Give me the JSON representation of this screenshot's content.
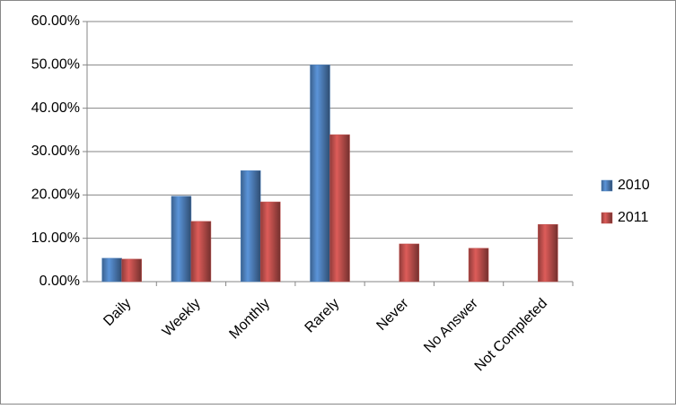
{
  "chart_data": {
    "type": "bar",
    "categories": [
      "Daily",
      "Weekly",
      "Monthly",
      "Rarely",
      "Never",
      "No Answer",
      "Not Completed"
    ],
    "series": [
      {
        "name": "2010",
        "color": "#4f81bd",
        "values": [
          5.4,
          19.7,
          25.6,
          50,
          null,
          null,
          null
        ]
      },
      {
        "name": "2011",
        "color": "#c0504d",
        "values": [
          5.2,
          13.9,
          18.4,
          33.9,
          8.7,
          7.7,
          13.2
        ]
      }
    ],
    "ylim": [
      0,
      60
    ],
    "yticks": [
      {
        "value": 0,
        "label": "0.00%"
      },
      {
        "value": 10,
        "label": "10.00%"
      },
      {
        "value": 20,
        "label": "20.00%"
      },
      {
        "value": 30,
        "label": "30.00%"
      },
      {
        "value": 40,
        "label": "40.00%"
      },
      {
        "value": 50,
        "label": "50.00%"
      },
      {
        "value": 60,
        "label": "60.00%"
      }
    ],
    "grid": true,
    "legend": "right"
  }
}
